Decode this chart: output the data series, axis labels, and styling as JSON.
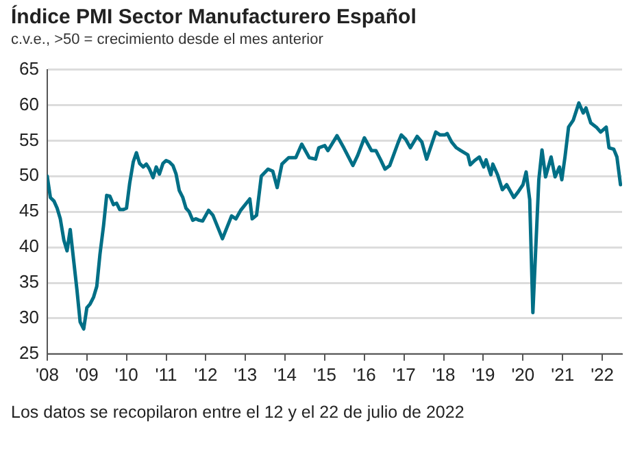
{
  "chart_data": {
    "type": "line",
    "title": "Índice PMI Sector Manufacturero Español",
    "subtitle": "c.v.e., >50 = crecimiento desde el mes anterior",
    "annotations": [
      "Los datos se recopilaron entre el 12 y el 22 de julio de 2022"
    ],
    "x": [
      2008.0,
      2008.08,
      2008.17,
      2008.25,
      2008.33,
      2008.42,
      2008.5,
      2008.58,
      2008.67,
      2008.75,
      2008.83,
      2008.92,
      2009.0,
      2009.08,
      2009.17,
      2009.25,
      2009.33,
      2009.42,
      2009.5,
      2009.58,
      2009.67,
      2009.75,
      2009.83,
      2009.92,
      2010.0,
      2010.08,
      2010.17,
      2010.25,
      2010.33,
      2010.42,
      2010.5,
      2010.58,
      2010.67,
      2010.75,
      2010.83,
      2010.92,
      2011.0,
      2011.08,
      2011.17,
      2011.25,
      2011.33,
      2011.42,
      2011.5,
      2011.58,
      2011.67,
      2011.75,
      2011.83,
      2011.92,
      2012.07,
      2012.18,
      2012.42,
      2012.65,
      2012.76,
      2012.88,
      2013.11,
      2013.17,
      2013.28,
      2013.4,
      2013.57,
      2013.69,
      2013.8,
      2013.92,
      2014.09,
      2014.27,
      2014.42,
      2014.61,
      2014.77,
      2014.85,
      2015.0,
      2015.08,
      2015.31,
      2015.48,
      2015.71,
      2015.83,
      2016.0,
      2016.18,
      2016.29,
      2016.41,
      2016.52,
      2016.64,
      2016.85,
      2016.93,
      2017.04,
      2017.16,
      2017.33,
      2017.45,
      2017.57,
      2017.8,
      2017.91,
      2018.03,
      2018.09,
      2018.2,
      2018.32,
      2018.43,
      2018.61,
      2018.67,
      2018.78,
      2018.9,
      2019.01,
      2019.07,
      2019.19,
      2019.24,
      2019.36,
      2019.48,
      2019.59,
      2019.77,
      2019.88,
      2020.0,
      2020.08,
      2020.17,
      2020.25,
      2020.4,
      2020.48,
      2020.57,
      2020.71,
      2020.81,
      2020.92,
      2020.98,
      2021.06,
      2021.15,
      2021.27,
      2021.41,
      2021.52,
      2021.59,
      2021.71,
      2021.85,
      2021.96,
      2022.1,
      2022.17,
      2022.29,
      2022.37,
      2022.46
    ],
    "series": [
      {
        "color": "#006f86",
        "values": [
          50,
          47,
          46.5,
          45.5,
          44,
          41,
          39.5,
          42.5,
          38,
          34,
          29.5,
          28.5,
          31.5,
          32,
          33,
          34.5,
          39,
          43,
          47.3,
          47.2,
          46,
          46.2,
          45.3,
          45.3,
          45.5,
          49,
          52,
          53.3,
          51.8,
          51.3,
          51.7,
          51,
          49.8,
          51.3,
          50.3,
          51.8,
          52.2,
          52,
          51.5,
          50.3,
          48,
          47,
          45.5,
          45,
          43.8,
          44,
          43.8,
          43.7,
          45.2,
          44.5,
          41.2,
          44.4,
          44,
          45.2,
          46.8,
          44,
          44.5,
          50,
          51,
          50.7,
          48.4,
          51.7,
          52.6,
          52.6,
          54.5,
          52.6,
          52.4,
          54,
          54.3,
          53.6,
          55.7,
          54,
          51.5,
          52.9,
          55.4,
          53.6,
          53.6,
          52.3,
          51,
          51.5,
          54.7,
          55.8,
          55.2,
          54,
          55.6,
          54.8,
          52.4,
          56.2,
          55.8,
          55.8,
          56,
          54.8,
          54,
          53.6,
          53,
          51.6,
          52.2,
          52.7,
          51.3,
          52.3,
          50.2,
          51.7,
          50.2,
          48.1,
          48.8,
          47,
          47.8,
          48.8,
          50.6,
          46.7,
          30.8,
          49.5,
          53.7,
          49.9,
          52.7,
          49.9,
          51.3,
          49.5,
          52.7,
          56.9,
          57.9,
          60.3,
          58.9,
          59.6,
          57.5,
          56.9,
          56.2,
          56.9,
          54,
          53.8,
          52.7,
          48.8
        ]
      }
    ],
    "xlim": [
      2008,
      2022.5
    ],
    "xticks": [
      {
        "value": 2008,
        "label": "'08"
      },
      {
        "value": 2009,
        "label": "'09"
      },
      {
        "value": 2010,
        "label": "'10"
      },
      {
        "value": 2011,
        "label": "'11"
      },
      {
        "value": 2012,
        "label": "'12"
      },
      {
        "value": 2013,
        "label": "'13"
      },
      {
        "value": 2014,
        "label": "'14"
      },
      {
        "value": 2015,
        "label": "'15"
      },
      {
        "value": 2016,
        "label": "'16"
      },
      {
        "value": 2017,
        "label": "'17"
      },
      {
        "value": 2018,
        "label": "'18"
      },
      {
        "value": 2019,
        "label": "'19"
      },
      {
        "value": 2020,
        "label": "'20"
      },
      {
        "value": 2021,
        "label": "'21"
      },
      {
        "value": 2022,
        "label": "'22"
      }
    ],
    "ylim": [
      25,
      65
    ],
    "yticks": [
      25,
      30,
      35,
      40,
      45,
      50,
      55,
      60,
      65
    ],
    "grid": "y",
    "marker": "none",
    "line_style": "solid"
  }
}
